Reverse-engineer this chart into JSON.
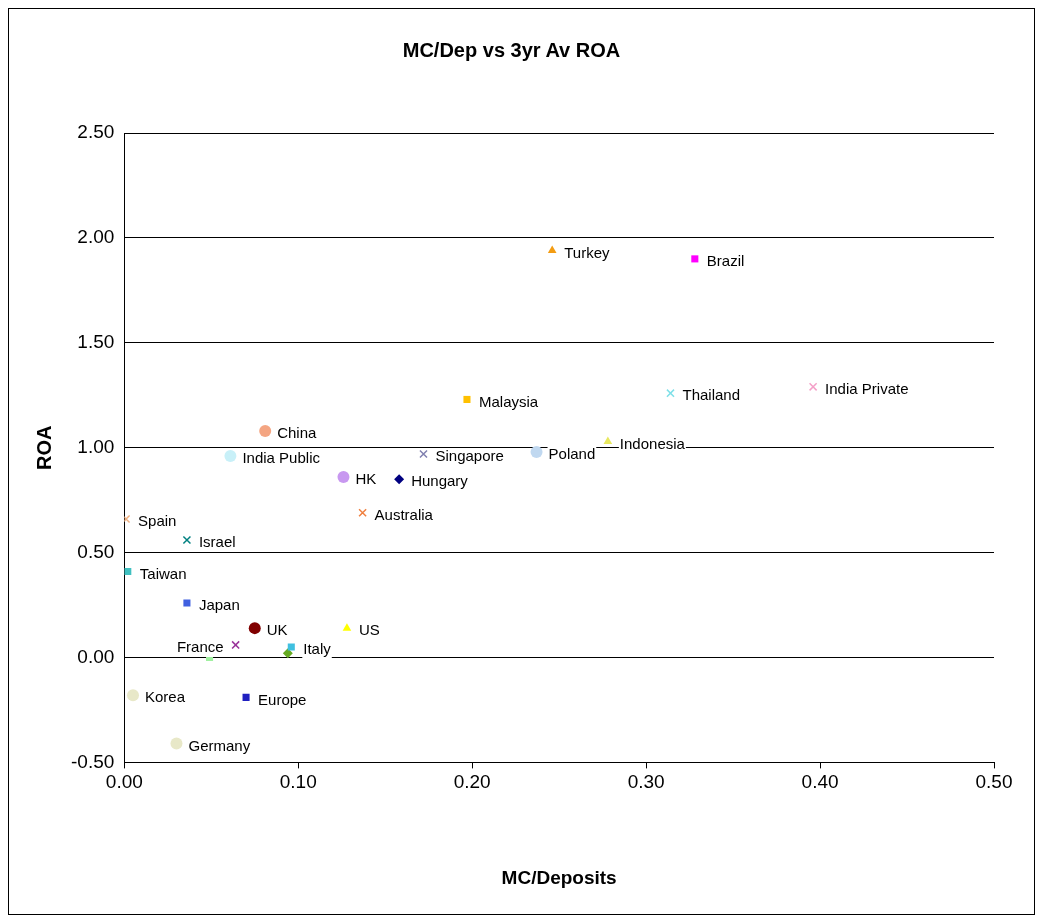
{
  "chart_data": {
    "type": "scatter",
    "title": "MC/Dep vs 3yr Av ROA",
    "xlabel": "MC/Deposits",
    "ylabel": "ROA",
    "xlim": [
      0,
      0.5
    ],
    "ylim": [
      -0.5,
      2.5
    ],
    "xticks": [
      {
        "value": 0,
        "label": "0.00"
      },
      {
        "value": 0.1,
        "label": "0.10"
      },
      {
        "value": 0.2,
        "label": "0.20"
      },
      {
        "value": 0.3,
        "label": "0.30"
      },
      {
        "value": 0.4,
        "label": "0.40"
      },
      {
        "value": 0.5,
        "label": "0.50"
      }
    ],
    "yticks": [
      {
        "value": -0.5,
        "label": "-0.50"
      },
      {
        "value": 0,
        "label": "0.00"
      },
      {
        "value": 0.5,
        "label": "0.50"
      },
      {
        "value": 1,
        "label": "1.00"
      },
      {
        "value": 1.5,
        "label": "1.50"
      },
      {
        "value": 2,
        "label": "2.00"
      },
      {
        "value": 2.5,
        "label": "2.50"
      }
    ],
    "grid": "y",
    "legend": false,
    "series": [
      {
        "color": "#f39c12",
        "marker": "triangle",
        "x": [
          0.246
        ],
        "values": [
          1.94
        ]
      },
      {
        "color": "#ff00ff",
        "marker": "square",
        "x": [
          0.328
        ],
        "values": [
          1.9
        ]
      },
      {
        "color": "#ffc000",
        "marker": "square",
        "x": [
          0.197
        ],
        "values": [
          1.23
        ]
      },
      {
        "color": "#7fe0e8",
        "marker": "cross",
        "x": [
          0.314
        ],
        "values": [
          1.26
        ]
      },
      {
        "color": "#f4a0c8",
        "marker": "cross",
        "x": [
          0.396
        ],
        "values": [
          1.29
        ]
      },
      {
        "color": "#e8e860",
        "marker": "triangle",
        "x": [
          0.278
        ],
        "values": [
          1.03
        ]
      },
      {
        "color": "#c0d8f0",
        "marker": "circle",
        "x": [
          0.237
        ],
        "values": [
          0.98
        ]
      },
      {
        "color": "#8080b0",
        "marker": "cross",
        "x": [
          0.172
        ],
        "values": [
          0.97
        ]
      },
      {
        "color": "#f4a582",
        "marker": "circle",
        "x": [
          0.081
        ],
        "values": [
          1.08
        ]
      },
      {
        "color": "#c8f0f8",
        "marker": "circle",
        "x": [
          0.061
        ],
        "values": [
          0.96
        ]
      },
      {
        "color": "#c898f0",
        "marker": "circle",
        "x": [
          0.126
        ],
        "values": [
          0.86
        ]
      },
      {
        "color": "#000080",
        "marker": "diamond",
        "x": [
          0.158
        ],
        "values": [
          0.85
        ]
      },
      {
        "color": "#f08040",
        "marker": "cross",
        "x": [
          0.137
        ],
        "values": [
          0.69
        ]
      },
      {
        "color": "#f0b080",
        "marker": "cross",
        "x": [
          0.001
        ],
        "values": [
          0.66
        ]
      },
      {
        "color": "#008080",
        "marker": "cross",
        "x": [
          0.036
        ],
        "values": [
          0.56
        ]
      },
      {
        "color": "#40c0c0",
        "marker": "square",
        "x": [
          0.002
        ],
        "values": [
          0.41
        ]
      },
      {
        "color": "#4060e0",
        "marker": "square",
        "x": [
          0.036
        ],
        "values": [
          0.26
        ]
      },
      {
        "color": "#800000",
        "marker": "circle",
        "x": [
          0.075
        ],
        "values": [
          0.14
        ]
      },
      {
        "color": "#ffff00",
        "marker": "triangle",
        "x": [
          0.128
        ],
        "values": [
          0.14
        ]
      },
      {
        "color": "#993399",
        "marker": "cross",
        "x": [
          0.064
        ],
        "values": [
          0.06
        ]
      },
      {
        "color": "#40c0e0",
        "marker": "square",
        "x": [
          0.096
        ],
        "values": [
          0.05
        ]
      },
      {
        "color": "#66aa22",
        "marker": "diamond",
        "x": [
          0.094
        ],
        "values": [
          0.02
        ]
      },
      {
        "color": "#a0f0a0",
        "marker": "square",
        "x": [
          0.049
        ],
        "values": [
          0.0
        ]
      },
      {
        "color": "#2020c0",
        "marker": "square",
        "x": [
          0.07
        ],
        "values": [
          -0.19
        ]
      },
      {
        "color": "#e8e8c8",
        "marker": "circle",
        "x": [
          0.005
        ],
        "values": [
          -0.18
        ]
      },
      {
        "color": "#e8e8c8",
        "marker": "circle",
        "x": [
          0.03
        ],
        "values": [
          -0.41
        ]
      }
    ],
    "annotations": [
      {
        "text": "Turkey",
        "x": 0.246,
        "y": 1.94
      },
      {
        "text": "Brazil",
        "x": 0.328,
        "y": 1.9
      },
      {
        "text": "Malaysia",
        "x": 0.197,
        "y": 1.23
      },
      {
        "text": "Thailand",
        "x": 0.314,
        "y": 1.26
      },
      {
        "text": "India Private",
        "x": 0.396,
        "y": 1.29
      },
      {
        "text": "Indonesia",
        "x": 0.278,
        "y": 1.03
      },
      {
        "text": "Poland",
        "x": 0.237,
        "y": 0.98
      },
      {
        "text": "Singapore",
        "x": 0.172,
        "y": 0.97
      },
      {
        "text": "China",
        "x": 0.081,
        "y": 1.08
      },
      {
        "text": "India Public",
        "x": 0.061,
        "y": 0.96
      },
      {
        "text": "HK",
        "x": 0.126,
        "y": 0.86
      },
      {
        "text": "Hungary",
        "x": 0.158,
        "y": 0.85
      },
      {
        "text": "Australia",
        "x": 0.137,
        "y": 0.69
      },
      {
        "text": "Spain",
        "x": 0.001,
        "y": 0.66
      },
      {
        "text": "Israel",
        "x": 0.036,
        "y": 0.56
      },
      {
        "text": "Taiwan",
        "x": 0.002,
        "y": 0.41
      },
      {
        "text": "Japan",
        "x": 0.036,
        "y": 0.26
      },
      {
        "text": "UK",
        "x": 0.075,
        "y": 0.14
      },
      {
        "text": "US",
        "x": 0.128,
        "y": 0.14
      },
      {
        "text": "France",
        "x": 0.064,
        "y": 0.06
      },
      {
        "text": "Italy",
        "x": 0.096,
        "y": 0.05
      },
      {
        "text": "Europe",
        "x": 0.07,
        "y": -0.19
      },
      {
        "text": "Korea",
        "x": 0.005,
        "y": -0.18
      },
      {
        "text": "Germany",
        "x": 0.03,
        "y": -0.41
      }
    ]
  }
}
